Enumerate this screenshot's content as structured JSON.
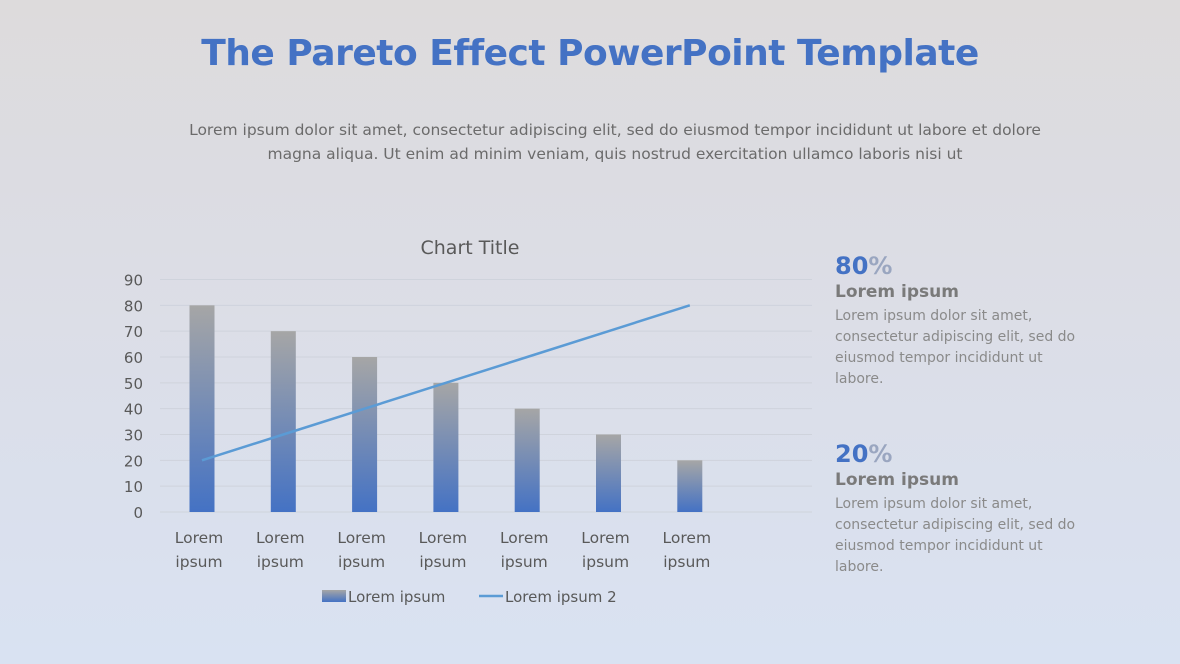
{
  "slide": {
    "title": "The Pareto Effect PowerPoint Template",
    "subtitle_line1": "Lorem ipsum dolor sit amet, consectetur adipiscing elit, sed do eiusmod tempor incididunt ut labore et dolore",
    "subtitle_line2": "magna aliqua. Ut enim ad minim veniam, quis nostrud exercitation ullamco laboris nisi ut"
  },
  "stats": [
    {
      "value": "80",
      "symbol": "%",
      "heading": "Lorem ipsum",
      "text": "Lorem ipsum dolor sit amet, consectetur adipiscing elit, sed do eiusmod tempor incididunt ut labore."
    },
    {
      "value": "20",
      "symbol": "%",
      "heading": "Lorem ipsum",
      "text": "Lorem ipsum dolor sit amet, consectetur adipiscing elit, sed do eiusmod tempor incididunt ut labore."
    }
  ],
  "colors": {
    "bar_top": "#a6a6a6",
    "bar_bottom": "#4472c4",
    "line": "#5b9bd5",
    "accent": "#4472c4"
  },
  "chart_data": {
    "type": "bar",
    "title": "Chart Title",
    "categories": [
      "Lorem ipsum",
      "Lorem ipsum",
      "Lorem ipsum",
      "Lorem ipsum",
      "Lorem ipsum",
      "Lorem ipsum",
      "Lorem ipsum"
    ],
    "series": [
      {
        "name": "Lorem ipsum",
        "type": "bar",
        "values": [
          80,
          70,
          60,
          50,
          40,
          30,
          20
        ]
      },
      {
        "name": "Lorem ipsum 2",
        "type": "line",
        "values": [
          20,
          30,
          40,
          50,
          60,
          70,
          80
        ]
      }
    ],
    "ylim": [
      0,
      90
    ],
    "yticks": [
      0,
      10,
      20,
      30,
      40,
      50,
      60,
      70,
      80,
      90
    ],
    "grid": true,
    "legend": "bottom"
  }
}
